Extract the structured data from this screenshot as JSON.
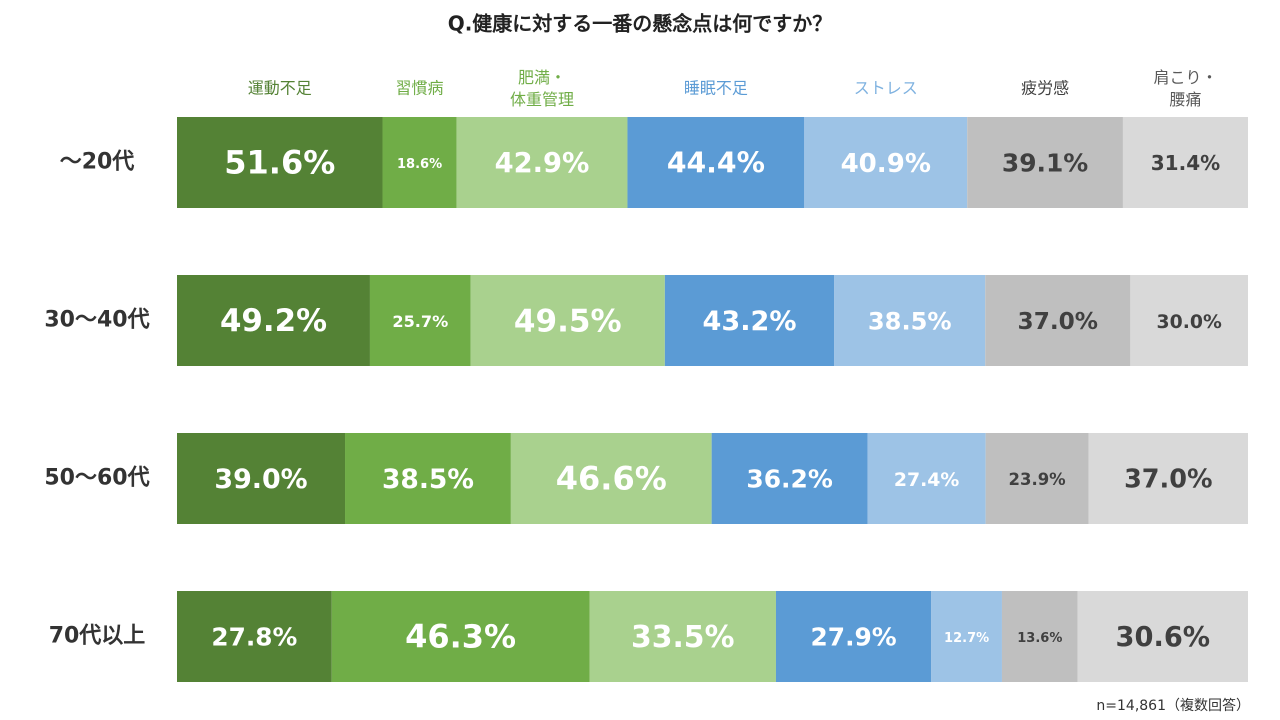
{
  "chart_data": {
    "type": "stacked-bar-100",
    "title": "Q.健康に対する一番の懸念点は何ですか？",
    "footnote": "n=14,861（複数回答）",
    "categories": [
      "～20代",
      "30～40代",
      "50～60代",
      "70代以上"
    ],
    "series": [
      {
        "name": "運動不足",
        "color": "#548235",
        "label_color": "#548235",
        "value_label_color": "#ffffff",
        "values": [
          51.6,
          49.2,
          39.0,
          27.8
        ],
        "value_labels": [
          "51.6%",
          "49.2%",
          "39.0%",
          "27.8%"
        ]
      },
      {
        "name": "習慣病",
        "color": "#70ad47",
        "label_color": "#70ad47",
        "value_label_color": "#ffffff",
        "values": [
          18.6,
          25.7,
          38.5,
          46.3
        ],
        "value_labels": [
          "18.6%",
          "25.7%",
          "38.5%",
          "46.3%"
        ]
      },
      {
        "name": "肥満・\n体重管理",
        "color": "#a9d18e",
        "label_color": "#70ad47",
        "value_label_color": "#ffffff",
        "values": [
          42.9,
          49.5,
          46.6,
          33.5
        ],
        "value_labels": [
          "42.9%",
          "49.5%",
          "46.6%",
          "33.5%"
        ]
      },
      {
        "name": "睡眠不足",
        "color": "#5b9bd5",
        "label_color": "#5b9bd5",
        "value_label_color": "#ffffff",
        "values": [
          44.4,
          43.2,
          36.2,
          27.9
        ],
        "value_labels": [
          "44.4%",
          "43.2%",
          "36.2%",
          "27.9%"
        ]
      },
      {
        "name": "ストレス",
        "color": "#9dc3e6",
        "label_color": "#7fb2e0",
        "value_label_color": "#ffffff",
        "values": [
          40.9,
          38.5,
          27.4,
          12.7
        ],
        "value_labels": [
          "40.9%",
          "38.5%",
          "27.4%",
          "12.7%"
        ]
      },
      {
        "name": "疲労感",
        "color": "#bfbfbf",
        "label_color": "#404040",
        "value_label_color": "#404040",
        "values": [
          39.1,
          37.0,
          23.9,
          13.6
        ],
        "value_labels": [
          "39.1%",
          "37.0%",
          "23.9%",
          "13.6%"
        ]
      },
      {
        "name": "肩こり・\n腰痛",
        "color": "#d9d9d9",
        "label_color": "#595959",
        "value_label_color": "#404040",
        "values": [
          31.4,
          30.0,
          37.0,
          30.6
        ],
        "value_labels": [
          "31.4%",
          "30.0%",
          "37.0%",
          "30.6%"
        ]
      }
    ]
  }
}
